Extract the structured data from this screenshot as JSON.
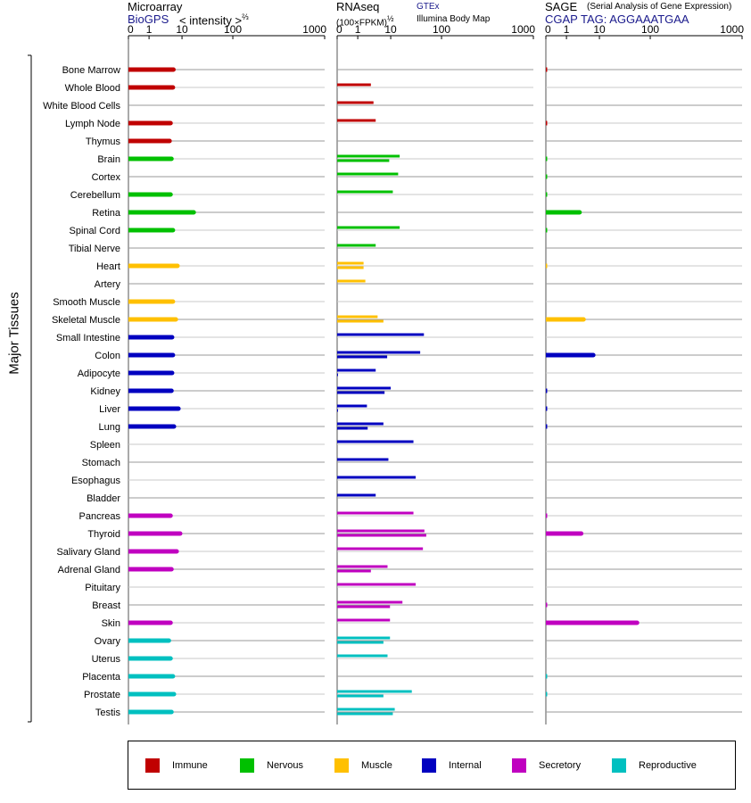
{
  "page": {
    "y_axis_label": "Major Tissues"
  },
  "panels": {
    "microarray": {
      "title": "Microarray",
      "source_link": "BioGPS",
      "axis_caption": "< intensity >",
      "axis_power": "⅔"
    },
    "rnaseq": {
      "title": "RNAseq",
      "axis_caption": "(100×FPKM)",
      "axis_power": "½",
      "source_link": "GTEx",
      "source_secondary": "Illumina Body Map"
    },
    "sage": {
      "title": "SAGE",
      "subtitle": "(Serial Analysis of Gene Expression)",
      "tag_line": "CGAP TAG: AGGAAATGAA"
    }
  },
  "chart_data": {
    "type": "bar",
    "orientation": "horizontal",
    "tick_labels": [
      "0",
      "1",
      "10",
      "100",
      "1000"
    ],
    "tick_values": [
      0,
      1,
      10,
      100,
      1000
    ],
    "xlim": [
      0,
      1000
    ],
    "grid": true,
    "legend_position": "bottom",
    "categories": [
      "Bone Marrow",
      "Whole Blood",
      "White Blood Cells",
      "Lymph Node",
      "Thymus",
      "Brain",
      "Cortex",
      "Cerebellum",
      "Retina",
      "Spinal Cord",
      "Tibial Nerve",
      "Heart",
      "Artery",
      "Smooth Muscle",
      "Skeletal Muscle",
      "Small Intestine",
      "Colon",
      "Adipocyte",
      "Kidney",
      "Liver",
      "Lung",
      "Spleen",
      "Stomach",
      "Esophagus",
      "Bladder",
      "Pancreas",
      "Thyroid",
      "Salivary Gland",
      "Adrenal Gland",
      "Pituitary",
      "Breast",
      "Skin",
      "Ovary",
      "Uterus",
      "Placenta",
      "Prostate",
      "Testis"
    ],
    "groups": [
      "immune",
      "immune",
      "immune",
      "immune",
      "immune",
      "nervous",
      "nervous",
      "nervous",
      "nervous",
      "nervous",
      "nervous",
      "muscle",
      "muscle",
      "muscle",
      "muscle",
      "internal",
      "internal",
      "internal",
      "internal",
      "internal",
      "internal",
      "internal",
      "internal",
      "internal",
      "internal",
      "secretory",
      "secretory",
      "secretory",
      "secretory",
      "secretory",
      "secretory",
      "secretory",
      "reproductive",
      "reproductive",
      "reproductive",
      "reproductive",
      "reproductive"
    ],
    "group_colors": {
      "immune": "#c00000",
      "nervous": "#00c000",
      "muscle": "#ffc000",
      "internal": "#0000c0",
      "secretory": "#c000c0",
      "reproductive": "#00c0c0"
    },
    "legend": [
      {
        "key": "immune",
        "label": "Immune"
      },
      {
        "key": "nervous",
        "label": "Nervous"
      },
      {
        "key": "muscle",
        "label": "Muscle"
      },
      {
        "key": "internal",
        "label": "Internal"
      },
      {
        "key": "secretory",
        "label": "Secretory"
      },
      {
        "key": "reproductive",
        "label": "Reproductive"
      }
    ],
    "microarray": [
      5.5,
      5.3,
      null,
      4.5,
      4.2,
      4.8,
      null,
      4.5,
      17,
      5.3,
      null,
      7.3,
      null,
      5.3,
      6.5,
      5,
      5.3,
      5,
      4.8,
      7.8,
      5.7,
      null,
      null,
      null,
      null,
      4.5,
      8.8,
      6.9,
      4.8,
      null,
      null,
      4.5,
      4,
      4.5,
      5.3,
      5.7,
      4.8
    ],
    "rnaseq_gtex": [
      null,
      2.5,
      null,
      null,
      null,
      15,
      null,
      null,
      null,
      null,
      null,
      null,
      null,
      null,
      null,
      null,
      null,
      null,
      null,
      null,
      null,
      null,
      null,
      null,
      null,
      null,
      null,
      null,
      null,
      null,
      null,
      null,
      null,
      null,
      null,
      null,
      null
    ],
    "rnaseq": [
      [
        null,
        2.5,
        null,
        null,
        null,
        15,
        null,
        null,
        null,
        null,
        null,
        null,
        null,
        null,
        null,
        null,
        null,
        null,
        null,
        null,
        null,
        null,
        null,
        null,
        null,
        null,
        null,
        null,
        null,
        null,
        null,
        null,
        null,
        null,
        null,
        null,
        null
      ],
      [
        null,
        null,
        3,
        3.5,
        null,
        9,
        14,
        11,
        null,
        15,
        3.5,
        1.5,
        1.7,
        null,
        4,
        45,
        38,
        3.5,
        10,
        1.9,
        6,
        28,
        8.5,
        31,
        3.5,
        28,
        46,
        43,
        8,
        31,
        17,
        9.5,
        9.5,
        8,
        null,
        26,
        12
      ],
      [
        null,
        null,
        null,
        null,
        null,
        null,
        null,
        null,
        null,
        null,
        null,
        1.5,
        null,
        null,
        6,
        null,
        7.8,
        0.02,
        6.5,
        0.02,
        2,
        null,
        null,
        null,
        null,
        null,
        50,
        null,
        2.5,
        null,
        9.5,
        null,
        6,
        null,
        null,
        6,
        11
      ]
    ],
    "sage": [
      0.05,
      null,
      null,
      0.05,
      null,
      0.05,
      0.03,
      0.03,
      2.5,
      0.04,
      null,
      0.02,
      null,
      null,
      3.3,
      null,
      6.5,
      null,
      0.05,
      0.05,
      0.05,
      null,
      null,
      null,
      null,
      0.05,
      2.8,
      null,
      null,
      null,
      0.05,
      55,
      null,
      null,
      0.05,
      0.05,
      null
    ]
  }
}
